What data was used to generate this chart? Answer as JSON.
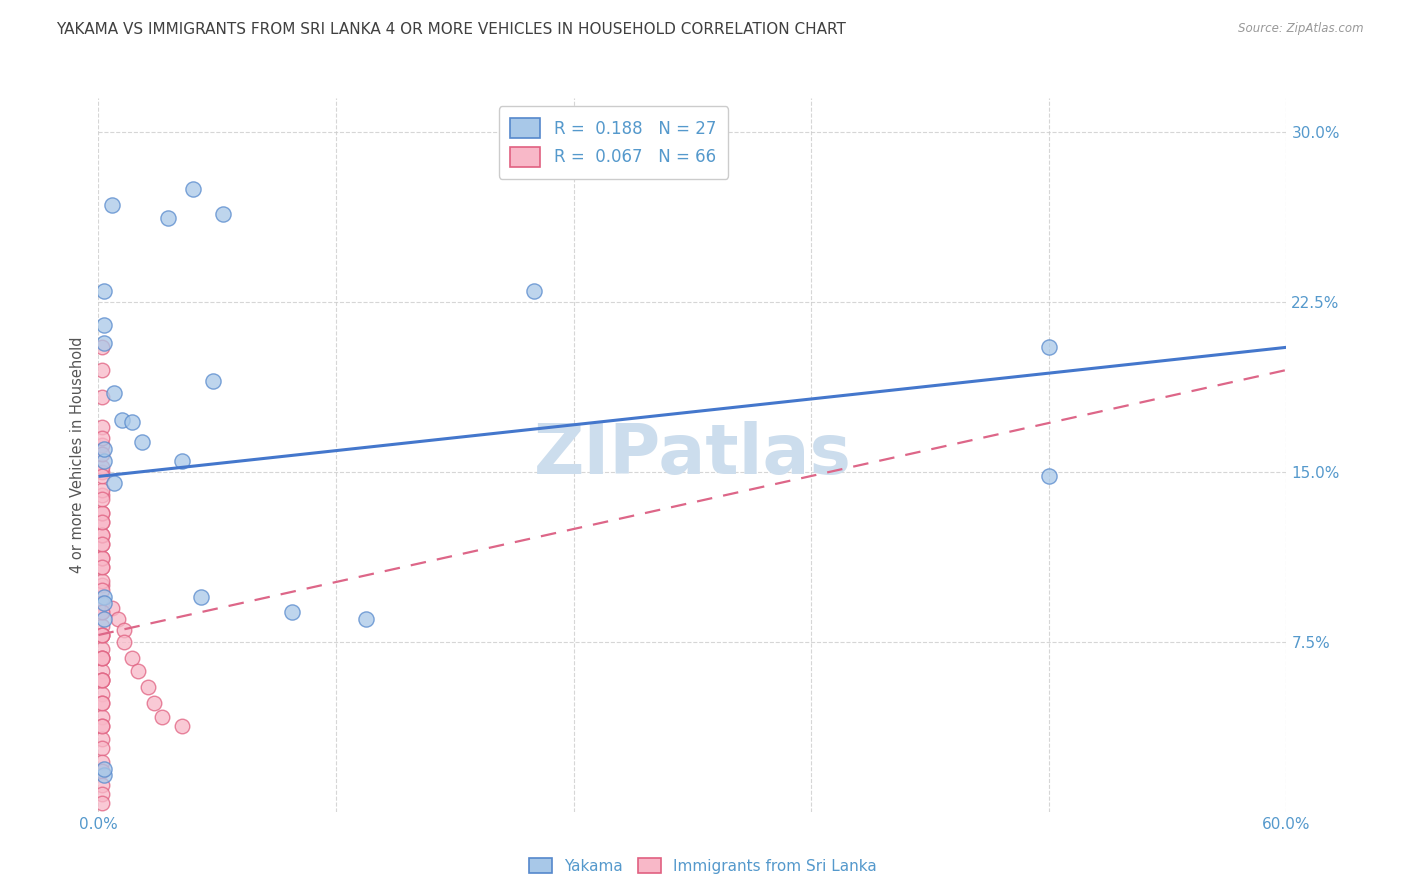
{
  "title": "YAKAMA VS IMMIGRANTS FROM SRI LANKA 4 OR MORE VEHICLES IN HOUSEHOLD CORRELATION CHART",
  "source": "Source: ZipAtlas.com",
  "ylabel": "4 or more Vehicles in Household",
  "xlim": [
    0.0,
    0.6
  ],
  "ylim": [
    0.0,
    0.315
  ],
  "xticks": [
    0.0,
    0.12,
    0.24,
    0.36,
    0.48,
    0.6
  ],
  "xticklabels": [
    "0.0%",
    "",
    "",
    "",
    "",
    "60.0%"
  ],
  "yticks_right": [
    0.075,
    0.15,
    0.225,
    0.3
  ],
  "yticklabels_right": [
    "7.5%",
    "15.0%",
    "22.5%",
    "30.0%"
  ],
  "watermark": "ZIPatlas",
  "blue_color": "#a8c8e8",
  "blue_edge_color": "#5588cc",
  "pink_color": "#f8b8c8",
  "pink_edge_color": "#e06080",
  "blue_line_color": "#4477cc",
  "pink_line_color": "#dd6688",
  "title_color": "#404040",
  "axis_tick_color": "#5599cc",
  "watermark_color": "#ccdded",
  "blue_line_x0": 0.0,
  "blue_line_x1": 0.6,
  "blue_line_y0": 0.148,
  "blue_line_y1": 0.205,
  "pink_line_x0": 0.0,
  "pink_line_x1": 0.6,
  "pink_line_y0": 0.078,
  "pink_line_y1": 0.195,
  "blue_scatter_x": [
    0.007,
    0.035,
    0.048,
    0.063,
    0.003,
    0.003,
    0.008,
    0.012,
    0.017,
    0.022,
    0.003,
    0.008,
    0.042,
    0.058,
    0.22,
    0.48,
    0.48,
    0.003,
    0.003,
    0.003,
    0.003,
    0.003,
    0.052,
    0.098,
    0.135,
    0.003,
    0.003
  ],
  "blue_scatter_y": [
    0.268,
    0.262,
    0.275,
    0.264,
    0.215,
    0.207,
    0.185,
    0.173,
    0.172,
    0.163,
    0.155,
    0.145,
    0.155,
    0.19,
    0.23,
    0.205,
    0.148,
    0.095,
    0.092,
    0.085,
    0.016,
    0.019,
    0.095,
    0.088,
    0.085,
    0.16,
    0.23
  ],
  "pink_scatter_x": [
    0.002,
    0.002,
    0.002,
    0.002,
    0.002,
    0.002,
    0.002,
    0.002,
    0.002,
    0.002,
    0.002,
    0.002,
    0.002,
    0.002,
    0.002,
    0.002,
    0.002,
    0.002,
    0.002,
    0.002,
    0.002,
    0.002,
    0.002,
    0.002,
    0.002,
    0.002,
    0.002,
    0.002,
    0.002,
    0.002,
    0.002,
    0.002,
    0.002,
    0.002,
    0.002,
    0.002,
    0.002,
    0.002,
    0.002,
    0.002,
    0.002,
    0.002,
    0.007,
    0.01,
    0.013,
    0.013,
    0.017,
    0.02,
    0.025,
    0.028,
    0.032,
    0.042,
    0.002,
    0.002,
    0.002,
    0.002,
    0.002,
    0.002,
    0.002,
    0.002,
    0.002,
    0.002,
    0.002,
    0.002,
    0.002,
    0.002
  ],
  "pink_scatter_y": [
    0.205,
    0.195,
    0.183,
    0.17,
    0.162,
    0.15,
    0.14,
    0.128,
    0.118,
    0.108,
    0.1,
    0.092,
    0.082,
    0.078,
    0.072,
    0.068,
    0.062,
    0.058,
    0.052,
    0.048,
    0.042,
    0.038,
    0.032,
    0.028,
    0.022,
    0.018,
    0.012,
    0.008,
    0.004,
    0.132,
    0.122,
    0.112,
    0.102,
    0.088,
    0.078,
    0.068,
    0.058,
    0.152,
    0.142,
    0.132,
    0.122,
    0.112,
    0.09,
    0.085,
    0.08,
    0.075,
    0.068,
    0.062,
    0.055,
    0.048,
    0.042,
    0.038,
    0.158,
    0.148,
    0.138,
    0.128,
    0.118,
    0.108,
    0.098,
    0.088,
    0.078,
    0.068,
    0.058,
    0.048,
    0.038,
    0.165
  ]
}
